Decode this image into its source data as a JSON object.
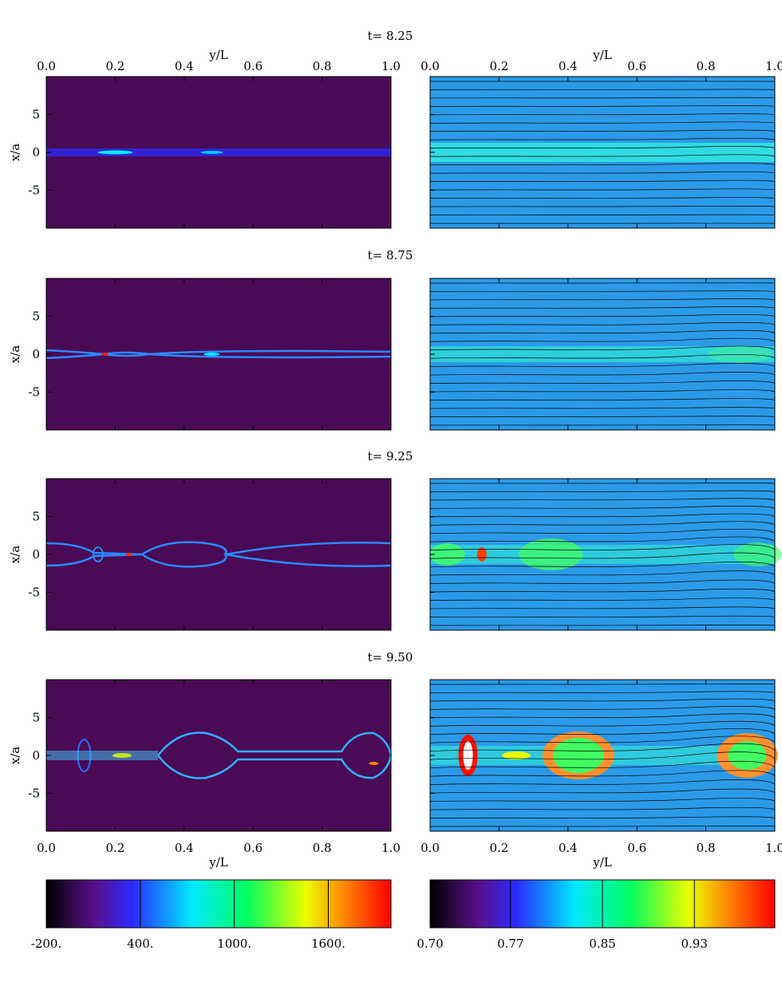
{
  "chart_data": [
    {
      "type": "heatmap",
      "layout": "2 columns x 4 rows of image panels, each column with its own horizontal colorbar",
      "times": [
        "t= 8.25",
        "t= 8.75",
        "t= 9.25",
        "t= 9.50"
      ],
      "xlabel": "y/L",
      "ylabel": "x/a",
      "xticks": [
        "0.0",
        "0.2",
        "0.4",
        "0.6",
        "0.8",
        "1.0"
      ],
      "xlim": [
        0,
        1
      ],
      "yticks": [
        "5",
        "0",
        "-5"
      ],
      "ylim": [
        -10,
        10
      ],
      "left_colorbar": {
        "ticks": [
          "-200.",
          "400.",
          "1000.",
          "1600."
        ],
        "range": [
          -200,
          2000
        ],
        "colormap": [
          "#000000",
          "#5a0f8a",
          "#2a2aff",
          "#00e8ff",
          "#00ff60",
          "#eaff00",
          "#ff8000",
          "#ff0000"
        ]
      },
      "right_colorbar": {
        "ticks": [
          "0.70",
          "0.77",
          "0.85",
          "0.93"
        ],
        "range": [
          0.7,
          1.0
        ],
        "colormap": [
          "#000000",
          "#5a0f8a",
          "#2a2aff",
          "#00e8ff",
          "#00ff60",
          "#eaff00",
          "#ff8000",
          "#ff0000"
        ]
      },
      "left_background": "#4a0a55",
      "right_background": "#2a9ae8",
      "right_field_lines": "black contour lines overlaid on right panels"
    }
  ]
}
